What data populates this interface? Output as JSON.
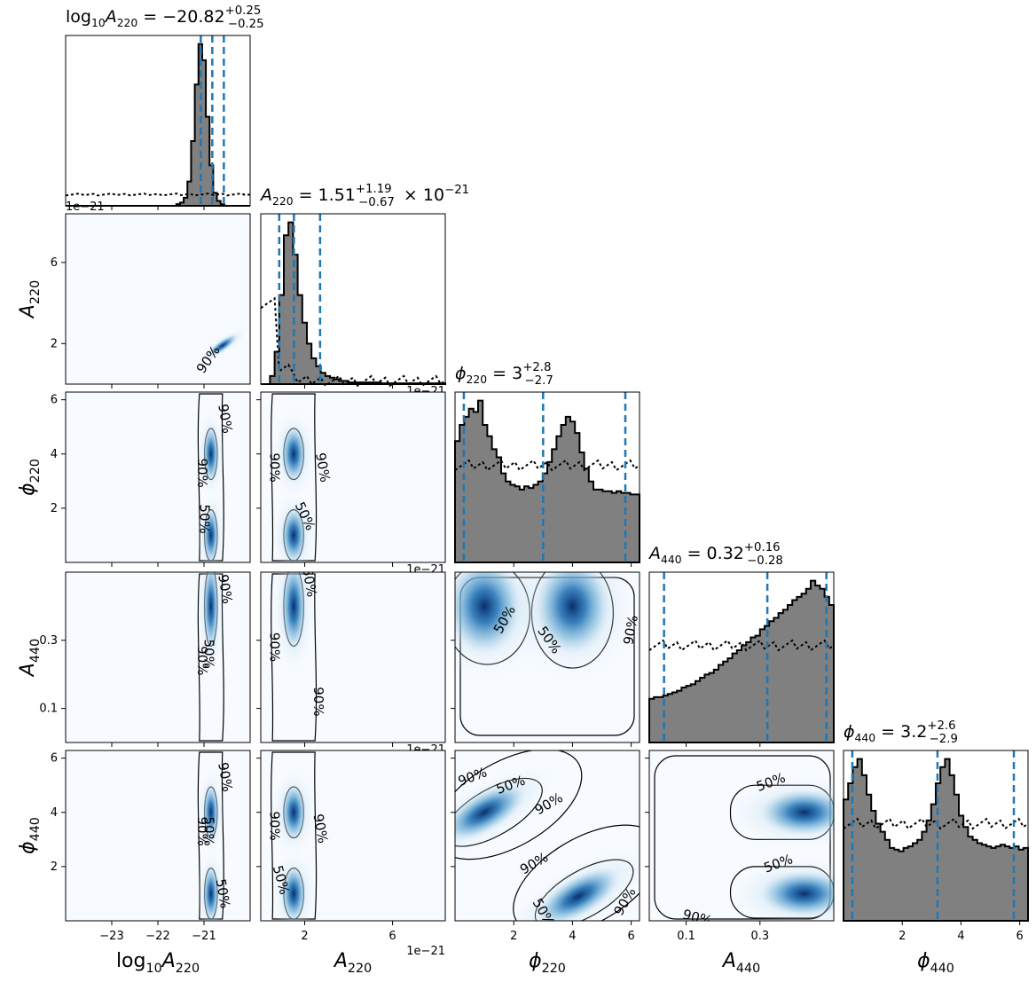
{
  "chart_data": {
    "type": "corner",
    "parameters": [
      {
        "label": "log₁₀A₂₂₀",
        "label_main": "log",
        "label_sub": "10",
        "label_var": "A",
        "label_var_sub": "220",
        "title_median": "−20.82",
        "title_plus": "+0.25",
        "title_minus": "−0.25",
        "title_suffix": "",
        "range": [
          -24.0,
          -20.0
        ],
        "ticks": [
          -23,
          -22,
          -21
        ],
        "tick_labels": [
          "−23",
          "−22",
          "−21"
        ],
        "median": -20.82,
        "q_low": -21.07,
        "q_high": -20.57,
        "offset_text": ""
      },
      {
        "label": "A₂₂₀",
        "label_var": "A",
        "label_var_sub": "220",
        "title_median": "1.51",
        "title_plus": "+1.19",
        "title_minus": "−0.67",
        "title_suffix": "× 10",
        "title_exp": "−21",
        "range": [
          0.0,
          8.4
        ],
        "ticks": [
          2,
          6
        ],
        "tick_labels": [
          "2",
          "6"
        ],
        "median": 1.51,
        "q_low": 0.84,
        "q_high": 2.7,
        "offset_text": "1e−21"
      },
      {
        "label": "ϕ₂₂₀",
        "label_var": "ϕ",
        "label_var_sub": "220",
        "title_median": "3",
        "title_plus": "+2.8",
        "title_minus": "−2.7",
        "title_suffix": "",
        "range": [
          0.0,
          6.283
        ],
        "ticks": [
          2,
          4,
          6
        ],
        "tick_labels": [
          "2",
          "4",
          "6"
        ],
        "median": 3.0,
        "q_low": 0.3,
        "q_high": 5.8,
        "offset_text": ""
      },
      {
        "label": "A₄₄₀",
        "label_var": "A",
        "label_var_sub": "440",
        "title_median": "0.32",
        "title_plus": "+0.16",
        "title_minus": "−0.28",
        "title_suffix": "",
        "range": [
          0.0,
          0.5
        ],
        "ticks": [
          0.1,
          0.3
        ],
        "tick_labels": [
          "0.1",
          "0.3"
        ],
        "median": 0.32,
        "q_low": 0.04,
        "q_high": 0.48,
        "offset_text": ""
      },
      {
        "label": "ϕ₄₄₀",
        "label_var": "ϕ",
        "label_var_sub": "440",
        "title_median": "3.2",
        "title_plus": "+2.6",
        "title_minus": "−2.9",
        "title_suffix": "",
        "range": [
          0.0,
          6.283
        ],
        "ticks": [
          2,
          4,
          6
        ],
        "tick_labels": [
          "2",
          "4",
          "6"
        ],
        "median": 3.2,
        "q_low": 0.3,
        "q_high": 5.8,
        "offset_text": ""
      }
    ],
    "histograms": {
      "p0": [
        0,
        0,
        0,
        0,
        0,
        0,
        0,
        0,
        0,
        0,
        0,
        0,
        0,
        0,
        0,
        0,
        0,
        0,
        0,
        0,
        0,
        0,
        0,
        0,
        0,
        0,
        0,
        0,
        0,
        0,
        0.01,
        0.02,
        0.05,
        0.15,
        0.4,
        0.75,
        1.0,
        0.9,
        0.55,
        0.25,
        0.08,
        0.03,
        0.01,
        0,
        0,
        0,
        0,
        0,
        0,
        0
      ],
      "p1": [
        0,
        0,
        0.05,
        0.2,
        0.55,
        0.92,
        1.0,
        0.8,
        0.55,
        0.38,
        0.25,
        0.16,
        0.11,
        0.07,
        0.05,
        0.04,
        0.03,
        0.02,
        0.02,
        0.01,
        0.01,
        0.01,
        0.01,
        0.01,
        0.01,
        0.01,
        0.005,
        0.005,
        0.005,
        0.005,
        0.005,
        0.005,
        0.005,
        0.005,
        0.005,
        0.005,
        0.005,
        0.005,
        0.005,
        0.005
      ],
      "p2": [
        0.75,
        0.85,
        0.9,
        0.95,
        0.93,
        1.0,
        0.85,
        0.78,
        0.7,
        0.65,
        0.55,
        0.5,
        0.48,
        0.47,
        0.45,
        0.47,
        0.46,
        0.48,
        0.5,
        0.55,
        0.62,
        0.7,
        0.78,
        0.85,
        0.9,
        0.87,
        0.8,
        0.68,
        0.58,
        0.5,
        0.45,
        0.45,
        0.44,
        0.44,
        0.43,
        0.44,
        0.43,
        0.43,
        0.42,
        0.42
      ],
      "p3": [
        0.27,
        0.28,
        0.28,
        0.29,
        0.3,
        0.31,
        0.32,
        0.34,
        0.35,
        0.36,
        0.38,
        0.4,
        0.42,
        0.43,
        0.45,
        0.48,
        0.5,
        0.52,
        0.55,
        0.57,
        0.6,
        0.62,
        0.65,
        0.66,
        0.7,
        0.72,
        0.75,
        0.77,
        0.8,
        0.82,
        0.85,
        0.88,
        0.9,
        0.92,
        0.95,
        1.0,
        0.97,
        0.95,
        0.9,
        0.85
      ],
      "p4": [
        0.75,
        0.85,
        0.95,
        1.0,
        0.9,
        0.78,
        0.68,
        0.6,
        0.55,
        0.5,
        0.45,
        0.44,
        0.43,
        0.45,
        0.46,
        0.48,
        0.5,
        0.55,
        0.62,
        0.72,
        0.85,
        0.95,
        1.0,
        0.9,
        0.78,
        0.65,
        0.58,
        0.52,
        0.5,
        0.48,
        0.47,
        0.46,
        0.45,
        0.46,
        0.47,
        0.46,
        0.45,
        0.46,
        0.44,
        0.45
      ]
    },
    "contour_levels": [
      "50%",
      "90%"
    ]
  }
}
